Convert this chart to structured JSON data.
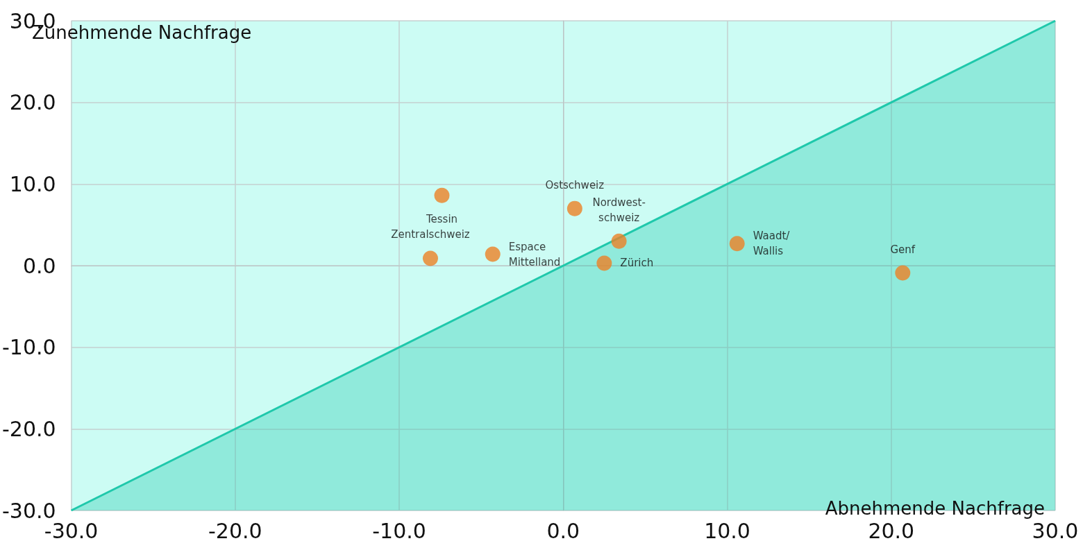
{
  "chart_data": {
    "type": "scatter",
    "xlim": [
      -30,
      30
    ],
    "ylim": [
      -30,
      30
    ],
    "xticks": [
      {
        "value": -30,
        "label": "-30.0"
      },
      {
        "value": -20,
        "label": "-20.0"
      },
      {
        "value": -10,
        "label": "-10.0"
      },
      {
        "value": 0,
        "label": "0.0"
      },
      {
        "value": 10,
        "label": "10.0"
      },
      {
        "value": 20,
        "label": "20.0"
      },
      {
        "value": 30,
        "label": "30.0"
      }
    ],
    "yticks": [
      {
        "value": -30,
        "label": "-30.0"
      },
      {
        "value": -20,
        "label": "-20.0"
      },
      {
        "value": -10,
        "label": "-10.0"
      },
      {
        "value": 0,
        "label": "0.0"
      },
      {
        "value": 10,
        "label": "10.0"
      },
      {
        "value": 20,
        "label": "20.0"
      },
      {
        "value": 30,
        "label": "30.0"
      }
    ],
    "grid": true,
    "annotations": [
      "Zunehmende Nachfrage",
      "Abnehmende Nachfrage"
    ],
    "series": [
      {
        "type": "area",
        "marker": "none",
        "color": "#1fc8ab",
        "x": [
          -30,
          30
        ],
        "values": [
          -30,
          30
        ]
      },
      {
        "marker": "circle",
        "color": "#ec8125",
        "x": [
          -7.4,
          -8.1,
          -4.3,
          0.7,
          3.4,
          2.5,
          10.6,
          20.7
        ],
        "values": [
          8.6,
          0.9,
          1.4,
          7.0,
          3.0,
          0.3,
          2.7,
          -0.9
        ],
        "value_labels": [
          "Tessin",
          "Zentralschweiz",
          "Espace\nMittelland",
          "Ostschweiz",
          "Nordwest-\nschweiz",
          "Zürich",
          "Waadt/\nWallis",
          "Genf"
        ]
      }
    ]
  }
}
